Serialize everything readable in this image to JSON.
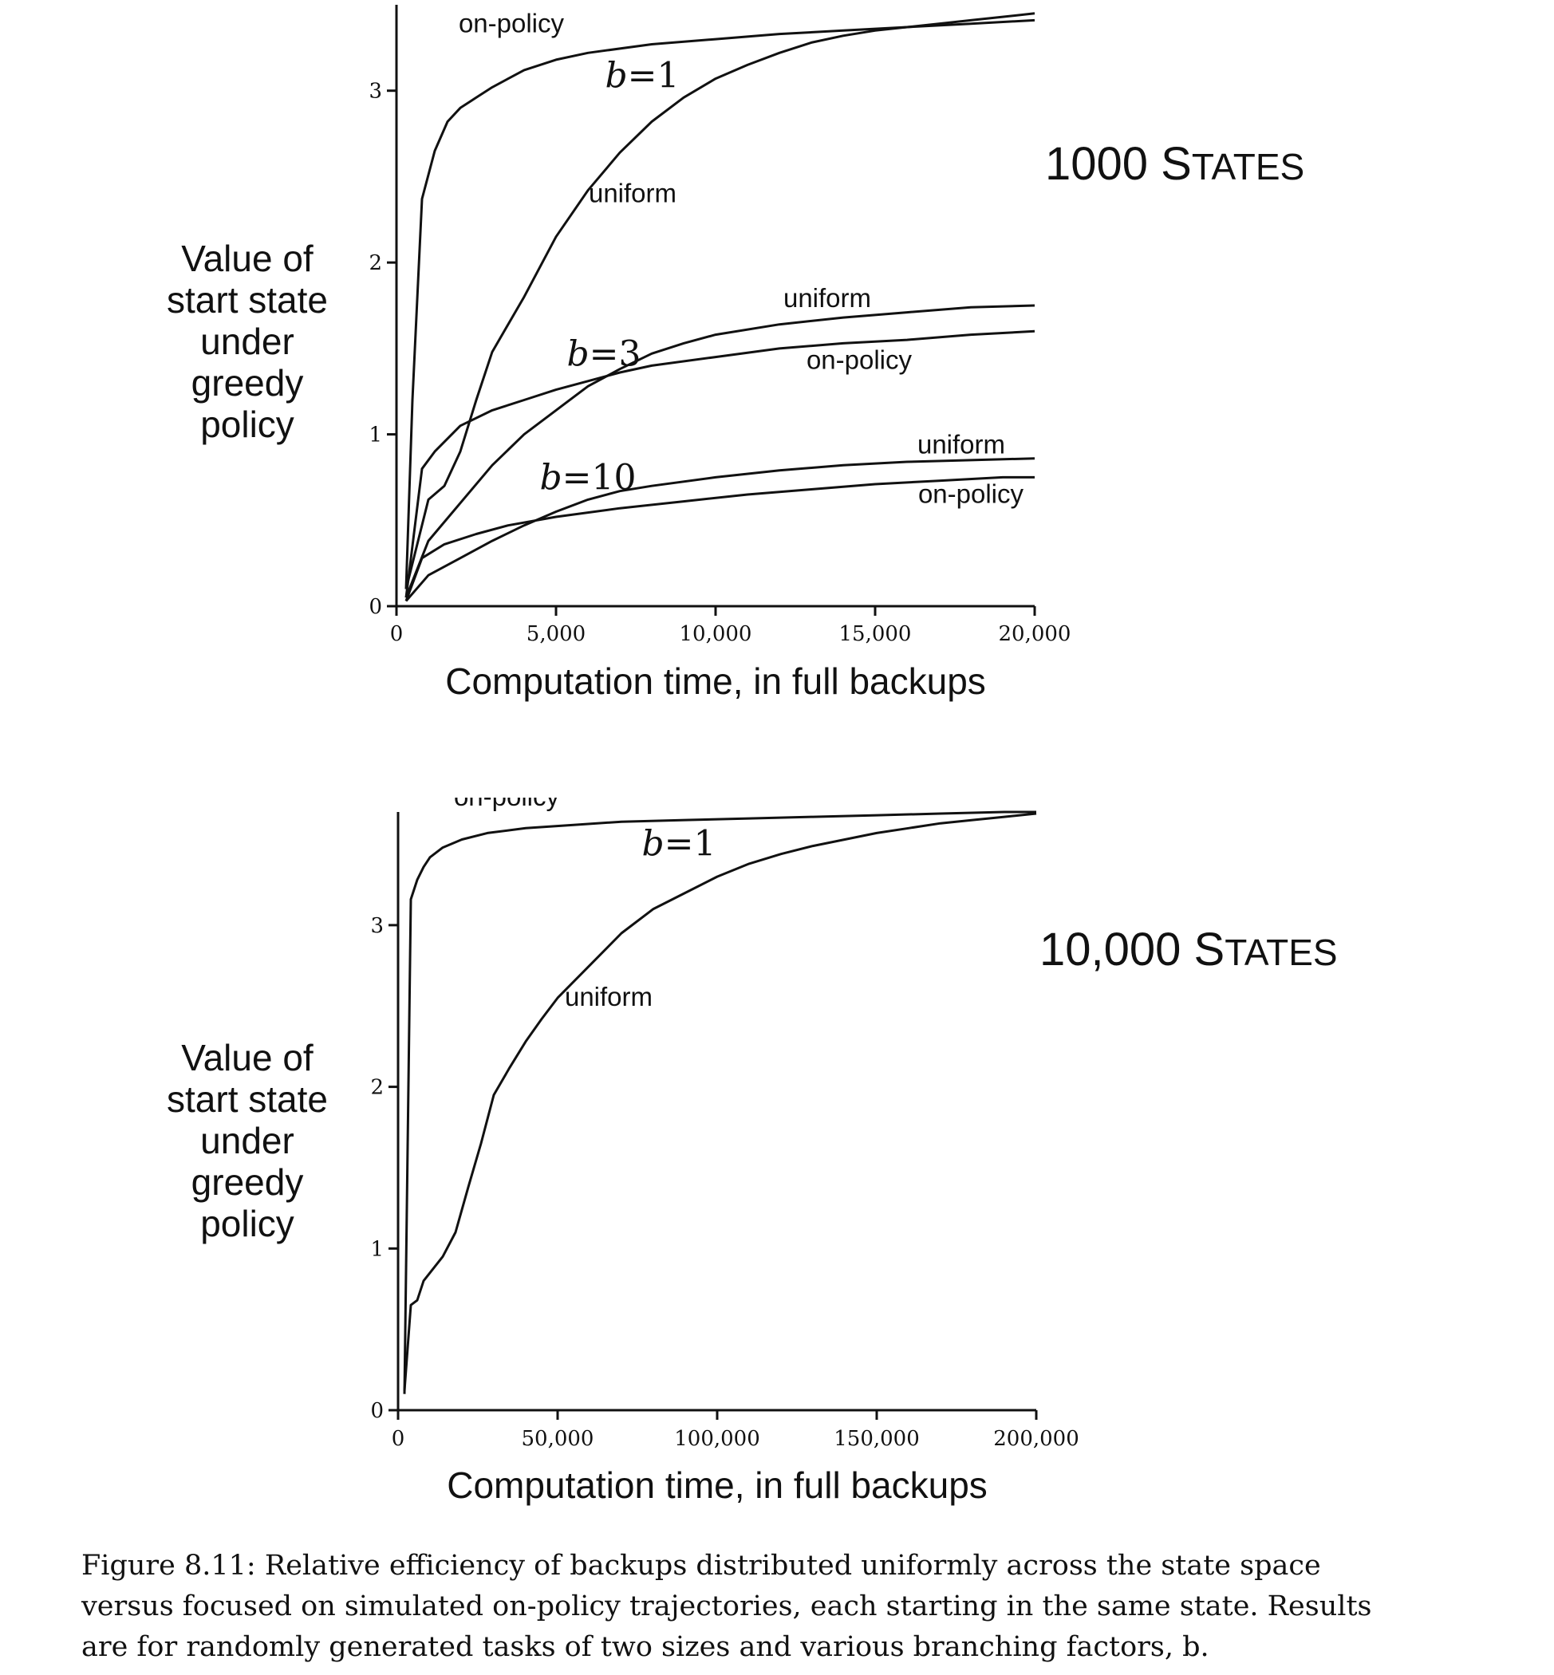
{
  "chart_data": [
    {
      "type": "line",
      "state_label": {
        "number": "1000",
        "word_first": "S",
        "word_rest": "TATES"
      },
      "ylabel_lines": [
        "Value of",
        "start state",
        "under",
        "greedy",
        "policy"
      ],
      "xlabel": "Computation time, in full backups",
      "xlim": [
        0,
        20000
      ],
      "ylim": [
        0,
        3.5
      ],
      "xticks": [
        0,
        5000,
        10000,
        15000,
        20000
      ],
      "xtick_labels": [
        "0",
        "5,000",
        "10,000",
        "15,000",
        "20,000"
      ],
      "yticks": [
        0,
        1,
        2,
        3
      ],
      "ytick_labels": [
        "0",
        "1",
        "2",
        "3"
      ],
      "grid": false,
      "series": [
        {
          "name": "on-policy",
          "branching": "b=1",
          "x": [
            300,
            500,
            800,
            1200,
            1600,
            2000,
            2500,
            3000,
            4000,
            5000,
            6000,
            8000,
            10000,
            12000,
            14000,
            16000,
            18000,
            20000
          ],
          "y": [
            0.1,
            1.2,
            2.37,
            2.65,
            2.82,
            2.9,
            2.96,
            3.02,
            3.12,
            3.18,
            3.22,
            3.27,
            3.3,
            3.33,
            3.35,
            3.37,
            3.39,
            3.41
          ]
        },
        {
          "name": "uniform",
          "branching": "b=1",
          "x": [
            300,
            1000,
            1500,
            2000,
            2500,
            3000,
            4000,
            5000,
            6000,
            7000,
            8000,
            9000,
            10000,
            11000,
            12000,
            13000,
            14000,
            15000,
            16000,
            17000,
            18000,
            19000,
            20000
          ],
          "y": [
            0.1,
            0.62,
            0.7,
            0.9,
            1.2,
            1.48,
            1.8,
            2.15,
            2.42,
            2.64,
            2.82,
            2.96,
            3.07,
            3.15,
            3.22,
            3.28,
            3.32,
            3.35,
            3.37,
            3.39,
            3.41,
            3.43,
            3.45
          ]
        },
        {
          "name": "uniform",
          "branching": "b=3",
          "x": [
            300,
            1000,
            2000,
            3000,
            4000,
            5000,
            6000,
            7000,
            8000,
            9000,
            10000,
            12000,
            14000,
            16000,
            18000,
            20000
          ],
          "y": [
            0.05,
            0.38,
            0.6,
            0.82,
            1.0,
            1.14,
            1.28,
            1.38,
            1.47,
            1.53,
            1.58,
            1.64,
            1.68,
            1.71,
            1.74,
            1.75
          ]
        },
        {
          "name": "on-policy",
          "branching": "b=3",
          "x": [
            300,
            800,
            1200,
            2000,
            3000,
            4000,
            5000,
            6000,
            7000,
            8000,
            10000,
            12000,
            14000,
            16000,
            18000,
            20000
          ],
          "y": [
            0.05,
            0.8,
            0.9,
            1.05,
            1.14,
            1.2,
            1.26,
            1.31,
            1.36,
            1.4,
            1.45,
            1.5,
            1.53,
            1.55,
            1.58,
            1.6
          ]
        },
        {
          "name": "uniform",
          "branching": "b=10",
          "x": [
            300,
            1000,
            2000,
            3000,
            4000,
            5000,
            6000,
            7000,
            8000,
            10000,
            12000,
            14000,
            16000,
            18000,
            20000
          ],
          "y": [
            0.03,
            0.18,
            0.28,
            0.38,
            0.47,
            0.55,
            0.62,
            0.67,
            0.7,
            0.75,
            0.79,
            0.82,
            0.84,
            0.85,
            0.86
          ]
        },
        {
          "name": "on-policy",
          "branching": "b=10",
          "x": [
            300,
            800,
            1500,
            2500,
            3500,
            5000,
            7000,
            9000,
            11000,
            13000,
            15000,
            17000,
            19000,
            20000
          ],
          "y": [
            0.03,
            0.28,
            0.36,
            0.42,
            0.47,
            0.52,
            0.57,
            0.61,
            0.65,
            0.68,
            0.71,
            0.73,
            0.75,
            0.75
          ]
        }
      ],
      "annotations": [
        {
          "text": "on-policy",
          "x": 3600,
          "y": 3.34
        },
        {
          "text": "uniform",
          "x": 7400,
          "y": 2.35
        },
        {
          "text": "uniform",
          "x": 13500,
          "y": 1.74
        },
        {
          "text": "on-policy",
          "x": 14500,
          "y": 1.38
        },
        {
          "text": "uniform",
          "x": 17700,
          "y": 0.89
        },
        {
          "text": "on-policy",
          "x": 18000,
          "y": 0.6
        }
      ],
      "branch_labels": [
        {
          "var": "b",
          "eq": "=1",
          "x": 7700,
          "y": 3.02
        },
        {
          "var": "b",
          "eq": "=3",
          "x": 6500,
          "y": 1.4
        },
        {
          "var": "b",
          "eq": "=10",
          "x": 6000,
          "y": 0.68
        }
      ]
    },
    {
      "type": "line",
      "state_label": {
        "number": "10,000",
        "word_first": "S",
        "word_rest": "TATES"
      },
      "ylabel_lines": [
        "Value of",
        "start state",
        "under",
        "greedy",
        "policy"
      ],
      "xlabel": "Computation time, in full backups",
      "xlim": [
        0,
        200000
      ],
      "ylim": [
        0,
        3.7
      ],
      "xticks": [
        0,
        50000,
        100000,
        150000,
        200000
      ],
      "xtick_labels": [
        "0",
        "50,000",
        "100,000",
        "150,000",
        "200,000"
      ],
      "yticks": [
        0,
        1,
        2,
        3
      ],
      "ytick_labels": [
        "0",
        "1",
        "2",
        "3"
      ],
      "grid": false,
      "series": [
        {
          "name": "on-policy",
          "branching": "b=1",
          "x": [
            2000,
            4000,
            6000,
            8000,
            10000,
            14000,
            20000,
            28000,
            40000,
            55000,
            70000,
            90000,
            110000,
            130000,
            150000,
            170000,
            190000,
            200000
          ],
          "y": [
            0.1,
            3.16,
            3.28,
            3.36,
            3.42,
            3.48,
            3.53,
            3.57,
            3.6,
            3.62,
            3.64,
            3.65,
            3.66,
            3.67,
            3.68,
            3.69,
            3.7,
            3.7
          ]
        },
        {
          "name": "uniform",
          "branching": "b=1",
          "x": [
            2000,
            4000,
            6000,
            8000,
            10000,
            14000,
            18000,
            22000,
            26000,
            30000,
            35000,
            40000,
            45000,
            50000,
            55000,
            60000,
            70000,
            80000,
            90000,
            100000,
            110000,
            120000,
            130000,
            140000,
            150000,
            160000,
            170000,
            180000,
            190000,
            200000
          ],
          "y": [
            0.12,
            0.65,
            0.68,
            0.8,
            0.85,
            0.95,
            1.1,
            1.38,
            1.65,
            1.95,
            2.12,
            2.28,
            2.42,
            2.55,
            2.65,
            2.75,
            2.95,
            3.1,
            3.2,
            3.3,
            3.38,
            3.44,
            3.49,
            3.53,
            3.57,
            3.6,
            3.63,
            3.65,
            3.67,
            3.69
          ]
        }
      ],
      "annotations": [
        {
          "text": "on-policy",
          "x": 34000,
          "y": 3.74
        },
        {
          "text": "uniform",
          "x": 66000,
          "y": 2.5
        }
      ],
      "branch_labels": [
        {
          "var": "b",
          "eq": "=1",
          "x": 88000,
          "y": 3.43
        }
      ]
    }
  ],
  "caption": {
    "lines": [
      "Figure 8.11:  Relative efficiency of backups distributed uniformly across the state space",
      "versus focused on simulated on-policy trajectories, each starting in the same state. Results",
      "are for randomly generated tasks of two sizes and various branching factors, b."
    ]
  }
}
